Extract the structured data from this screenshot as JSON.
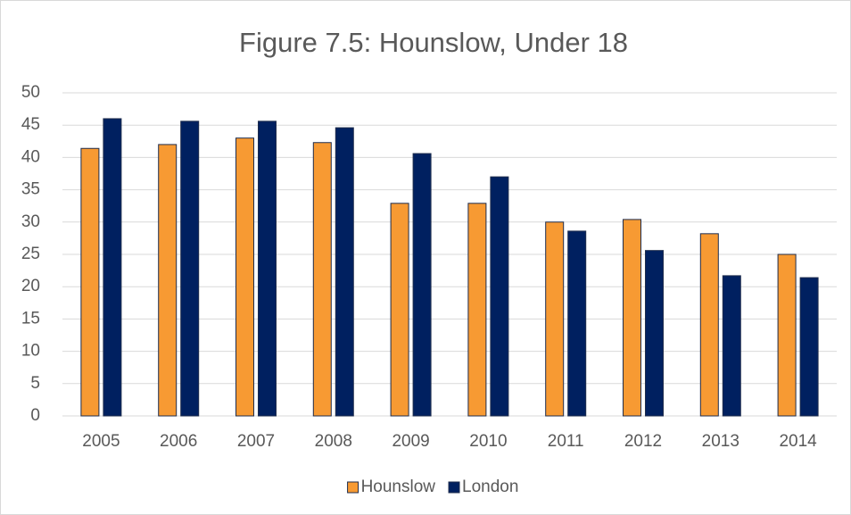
{
  "chart_data": {
    "type": "bar",
    "title": "Figure 7.5: Hounslow, Under 18",
    "categories": [
      "2005",
      "2006",
      "2007",
      "2008",
      "2009",
      "2010",
      "2011",
      "2012",
      "2013",
      "2014"
    ],
    "series": [
      {
        "name": "Hounslow",
        "color": "#f79a33",
        "values": [
          41.4,
          42.0,
          43.0,
          42.3,
          32.9,
          32.9,
          30.0,
          30.4,
          28.2,
          25.0
        ]
      },
      {
        "name": "London",
        "color": "#002060",
        "values": [
          46.0,
          45.6,
          45.6,
          44.6,
          40.6,
          37.0,
          28.6,
          25.6,
          21.7,
          21.4
        ]
      }
    ],
    "ylim": [
      0,
      50
    ],
    "yticks": [
      0,
      5,
      10,
      15,
      20,
      25,
      30,
      35,
      40,
      45,
      50
    ],
    "grid": true,
    "legend": "bottom"
  }
}
